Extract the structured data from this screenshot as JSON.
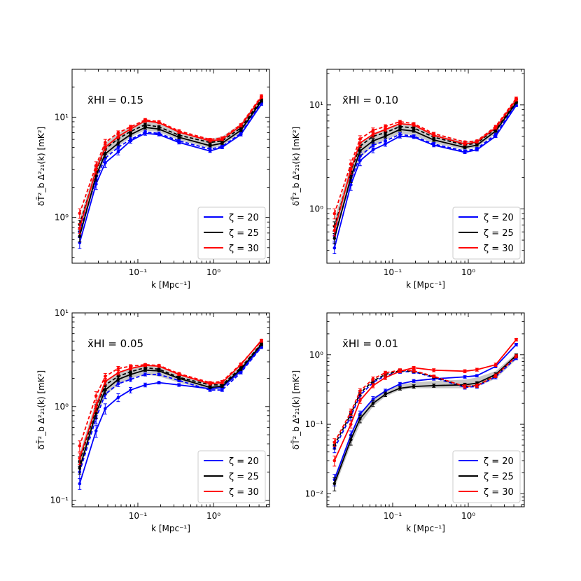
{
  "figure": {
    "x_axis_label": "k [Mpc⁻¹]",
    "y_axis_label": "δT̄²_b Δ²₂₁(k) [mK²]",
    "legend_entries": [
      {
        "label": "ζ = 20",
        "color": "#0000ff"
      },
      {
        "label": "ζ = 25",
        "color": "#000000"
      },
      {
        "label": "ζ = 30",
        "color": "#ff0000"
      }
    ],
    "styles": {
      "solid_series_style": "solid line with dot markers and error bars",
      "dashed_series_style": "dashed line with dot markers and error bars",
      "band_color": "#999999"
    }
  },
  "chart_data": [
    {
      "type": "line",
      "panel": "top-left",
      "annotation": "x̄HI = 0.15",
      "xlabel": "k [Mpc⁻¹]",
      "ylabel": "δT̄²_b Δ²₂₁(k) [mK²]",
      "xscale": "log",
      "yscale": "log",
      "xlim": [
        0.0135,
        5.5
      ],
      "ylim": [
        0.35,
        30
      ],
      "x_tick_labels": [
        "10⁻¹",
        "10⁰"
      ],
      "y_tick_labels": [
        "10⁰",
        "10¹"
      ],
      "legend_position": "lower-right",
      "x": [
        0.017,
        0.028,
        0.037,
        0.055,
        0.08,
        0.125,
        0.19,
        0.35,
        0.9,
        1.3,
        2.3,
        4.3
      ],
      "band": {
        "lower": [
          0.62,
          2.3,
          4.0,
          5.1,
          6.3,
          7.4,
          7.1,
          5.9,
          4.9,
          5.2,
          7.0,
          13.0
        ],
        "upper": [
          0.95,
          3.3,
          5.5,
          6.9,
          8.0,
          9.2,
          8.7,
          7.0,
          6.1,
          6.4,
          8.6,
          16.2
        ]
      },
      "series": [
        {
          "name": "ζ = 20",
          "values": [
            0.56,
            2.15,
            3.5,
            4.5,
            5.8,
            6.9,
            6.7,
            5.6,
            4.6,
            5.0,
            6.7,
            13.5
          ],
          "err": [
            0.07,
            0.25,
            0.35,
            0.3,
            0.3,
            0.3,
            0.2,
            0.2,
            0.15,
            0.15,
            0.2,
            0.4
          ],
          "style": "solid"
        },
        {
          "name": "ζ = 20",
          "values": [
            0.72,
            2.4,
            3.9,
            5.0,
            6.0,
            7.1,
            6.9,
            5.8,
            4.8,
            5.1,
            6.9,
            14.0
          ],
          "err": [
            0.08,
            0.25,
            0.35,
            0.3,
            0.3,
            0.3,
            0.2,
            0.2,
            0.15,
            0.15,
            0.2,
            0.4
          ],
          "style": "dashed"
        },
        {
          "name": "ζ = 25",
          "values": [
            0.65,
            2.6,
            4.3,
            5.5,
            6.7,
            7.9,
            7.6,
            6.3,
            5.2,
            5.5,
            7.4,
            14.5
          ],
          "err": [
            0.08,
            0.3,
            0.35,
            0.3,
            0.3,
            0.3,
            0.2,
            0.2,
            0.15,
            0.15,
            0.2,
            0.4
          ],
          "style": "solid"
        },
        {
          "name": "ζ = 25",
          "values": [
            0.85,
            2.9,
            4.8,
            6.1,
            7.2,
            8.4,
            8.0,
            6.6,
            5.6,
            5.8,
            7.8,
            15.0
          ],
          "err": [
            0.09,
            0.3,
            0.35,
            0.3,
            0.3,
            0.3,
            0.2,
            0.2,
            0.15,
            0.15,
            0.2,
            0.4
          ],
          "style": "dashed"
        },
        {
          "name": "ζ = 30",
          "values": [
            0.78,
            3.0,
            5.0,
            6.4,
            7.6,
            9.2,
            8.8,
            7.1,
            5.8,
            6.0,
            8.2,
            15.8
          ],
          "err": [
            0.09,
            0.3,
            0.35,
            0.3,
            0.3,
            0.3,
            0.2,
            0.2,
            0.15,
            0.15,
            0.2,
            0.4
          ],
          "style": "solid"
        },
        {
          "name": "ζ = 30",
          "values": [
            1.1,
            3.3,
            5.6,
            7.0,
            8.0,
            9.4,
            9.0,
            7.3,
            6.0,
            6.2,
            8.4,
            16.3
          ],
          "err": [
            0.12,
            0.3,
            0.4,
            0.3,
            0.3,
            0.3,
            0.2,
            0.2,
            0.15,
            0.15,
            0.2,
            0.4
          ],
          "style": "dashed"
        }
      ]
    },
    {
      "type": "line",
      "panel": "top-right",
      "annotation": "x̄HI = 0.10",
      "xlabel": "k [Mpc⁻¹]",
      "ylabel": "δT̄²_b Δ²₂₁(k) [mK²]",
      "xscale": "log",
      "yscale": "log",
      "xlim": [
        0.0135,
        5.5
      ],
      "ylim": [
        0.3,
        22
      ],
      "x_tick_labels": [
        "10⁻¹",
        "10⁰"
      ],
      "y_tick_labels": [
        "10⁰",
        "10¹"
      ],
      "legend_position": "lower-right",
      "x": [
        0.017,
        0.028,
        0.037,
        0.055,
        0.08,
        0.125,
        0.19,
        0.35,
        0.9,
        1.3,
        2.3,
        4.3
      ],
      "band": {
        "lower": [
          0.5,
          1.8,
          3.1,
          4.0,
          4.6,
          5.3,
          5.1,
          4.3,
          3.7,
          3.9,
          5.3,
          10.0
        ],
        "upper": [
          0.8,
          2.6,
          4.2,
          5.3,
          5.9,
          6.7,
          6.4,
          5.2,
          4.4,
          4.6,
          6.2,
          11.8
        ]
      },
      "series": [
        {
          "name": "ζ = 20",
          "values": [
            0.42,
            1.7,
            2.9,
            3.7,
            4.2,
            5.0,
            4.9,
            4.1,
            3.5,
            3.7,
            5.0,
            9.9
          ],
          "err": [
            0.05,
            0.2,
            0.3,
            0.25,
            0.2,
            0.2,
            0.15,
            0.15,
            0.1,
            0.1,
            0.15,
            0.3
          ],
          "style": "solid"
        },
        {
          "name": "ζ = 20",
          "values": [
            0.55,
            1.9,
            3.2,
            4.1,
            4.5,
            5.2,
            5.0,
            4.2,
            3.6,
            3.8,
            5.2,
            10.2
          ],
          "err": [
            0.06,
            0.2,
            0.3,
            0.25,
            0.2,
            0.2,
            0.15,
            0.15,
            0.1,
            0.1,
            0.15,
            0.3
          ],
          "style": "dashed"
        },
        {
          "name": "ζ = 25",
          "values": [
            0.52,
            2.0,
            3.6,
            4.5,
            5.0,
            5.8,
            5.6,
            4.6,
            3.9,
            4.1,
            5.6,
            10.5
          ],
          "err": [
            0.06,
            0.2,
            0.3,
            0.25,
            0.2,
            0.2,
            0.15,
            0.15,
            0.1,
            0.1,
            0.15,
            0.3
          ],
          "style": "solid"
        },
        {
          "name": "ζ = 25",
          "values": [
            0.68,
            2.3,
            4.0,
            5.0,
            5.4,
            6.2,
            6.0,
            4.9,
            4.1,
            4.3,
            5.9,
            10.9
          ],
          "err": [
            0.07,
            0.2,
            0.3,
            0.25,
            0.2,
            0.2,
            0.15,
            0.15,
            0.1,
            0.1,
            0.15,
            0.3
          ],
          "style": "dashed"
        },
        {
          "name": "ζ = 30",
          "values": [
            0.62,
            2.4,
            4.3,
            5.2,
            5.8,
            6.6,
            6.4,
            5.1,
            4.2,
            4.4,
            6.0,
            11.2
          ],
          "err": [
            0.07,
            0.25,
            0.35,
            0.3,
            0.25,
            0.2,
            0.15,
            0.15,
            0.1,
            0.1,
            0.15,
            0.3
          ],
          "style": "solid"
        },
        {
          "name": "ζ = 30",
          "values": [
            0.9,
            2.7,
            4.7,
            5.7,
            6.2,
            6.9,
            6.6,
            5.3,
            4.4,
            4.5,
            6.2,
            11.6
          ],
          "err": [
            0.1,
            0.25,
            0.35,
            0.3,
            0.25,
            0.2,
            0.15,
            0.15,
            0.1,
            0.1,
            0.15,
            0.3
          ],
          "style": "dashed"
        }
      ]
    },
    {
      "type": "line",
      "panel": "bottom-left",
      "annotation": "x̄HI = 0.05",
      "xlabel": "k [Mpc⁻¹]",
      "ylabel": "δT̄²_b Δ²₂₁(k) [mK²]",
      "xscale": "log",
      "yscale": "log",
      "xlim": [
        0.0135,
        5.5
      ],
      "ylim": [
        0.085,
        10
      ],
      "x_tick_labels": [
        "10⁻¹",
        "10⁰"
      ],
      "y_tick_labels": [
        "10⁻¹",
        "10⁰",
        "10¹"
      ],
      "legend_position": "lower-right",
      "x": [
        0.017,
        0.028,
        0.037,
        0.055,
        0.08,
        0.125,
        0.19,
        0.35,
        0.9,
        1.3,
        2.3,
        4.3
      ],
      "band": {
        "lower": [
          0.2,
          0.75,
          1.3,
          1.7,
          2.0,
          2.2,
          2.1,
          1.8,
          1.5,
          1.55,
          2.3,
          4.2
        ],
        "upper": [
          0.32,
          1.15,
          1.9,
          2.3,
          2.6,
          2.8,
          2.7,
          2.2,
          1.8,
          1.8,
          2.7,
          4.9
        ]
      },
      "series": [
        {
          "name": "ζ = 20",
          "values": [
            0.15,
            0.55,
            0.95,
            1.25,
            1.5,
            1.7,
            1.8,
            1.7,
            1.55,
            1.6,
            2.4,
            4.4
          ],
          "err": [
            0.02,
            0.08,
            0.12,
            0.12,
            0.1,
            0.08,
            0.06,
            0.06,
            0.05,
            0.05,
            0.07,
            0.15
          ],
          "style": "solid"
        },
        {
          "name": "ζ = 20",
          "values": [
            0.2,
            0.75,
            1.35,
            1.75,
            1.95,
            2.2,
            2.2,
            1.9,
            1.5,
            1.5,
            2.3,
            4.3
          ],
          "err": [
            0.03,
            0.1,
            0.14,
            0.12,
            0.1,
            0.08,
            0.06,
            0.06,
            0.05,
            0.05,
            0.07,
            0.15
          ],
          "style": "dashed"
        },
        {
          "name": "ζ = 25",
          "values": [
            0.22,
            0.85,
            1.5,
            1.95,
            2.2,
            2.45,
            2.4,
            2.0,
            1.6,
            1.65,
            2.5,
            4.6
          ],
          "err": [
            0.03,
            0.1,
            0.14,
            0.12,
            0.1,
            0.08,
            0.06,
            0.06,
            0.05,
            0.05,
            0.07,
            0.15
          ],
          "style": "solid"
        },
        {
          "name": "ζ = 25",
          "values": [
            0.26,
            0.95,
            1.7,
            2.1,
            2.35,
            2.6,
            2.5,
            2.05,
            1.7,
            1.7,
            2.6,
            4.7
          ],
          "err": [
            0.03,
            0.1,
            0.14,
            0.12,
            0.1,
            0.08,
            0.06,
            0.06,
            0.05,
            0.05,
            0.07,
            0.15
          ],
          "style": "dashed"
        },
        {
          "name": "ζ = 30",
          "values": [
            0.28,
            1.0,
            1.85,
            2.3,
            2.55,
            2.75,
            2.7,
            2.2,
            1.75,
            1.8,
            2.8,
            5.1
          ],
          "err": [
            0.04,
            0.12,
            0.15,
            0.13,
            0.1,
            0.08,
            0.06,
            0.06,
            0.05,
            0.05,
            0.07,
            0.15
          ],
          "style": "solid"
        },
        {
          "name": "ζ = 30",
          "values": [
            0.38,
            1.3,
            2.1,
            2.55,
            2.7,
            2.8,
            2.75,
            2.25,
            1.8,
            1.85,
            2.85,
            5.0
          ],
          "err": [
            0.05,
            0.14,
            0.16,
            0.13,
            0.1,
            0.08,
            0.06,
            0.06,
            0.05,
            0.05,
            0.07,
            0.15
          ],
          "style": "dashed"
        }
      ]
    },
    {
      "type": "line",
      "panel": "bottom-right",
      "annotation": "x̄HI = 0.01",
      "xlabel": "k [Mpc⁻¹]",
      "ylabel": "δT̄²_b Δ²₂₁(k) [mK²]",
      "xscale": "log",
      "yscale": "log",
      "xlim": [
        0.0135,
        5.5
      ],
      "ylim": [
        0.0065,
        4
      ],
      "x_tick_labels": [
        "10⁻¹",
        "10⁰"
      ],
      "y_tick_labels": [
        "10⁻²",
        "10⁻¹",
        "10⁰"
      ],
      "legend_position": "lower-right",
      "x": [
        0.017,
        0.028,
        0.037,
        0.055,
        0.08,
        0.125,
        0.19,
        0.35,
        0.9,
        1.3,
        2.3,
        4.3
      ],
      "band": {
        "lower": [
          0.012,
          0.05,
          0.1,
          0.18,
          0.25,
          0.31,
          0.33,
          0.33,
          0.33,
          0.35,
          0.45,
          0.85
        ],
        "upper": [
          0.018,
          0.07,
          0.14,
          0.24,
          0.31,
          0.37,
          0.4,
          0.42,
          0.44,
          0.47,
          0.58,
          1.05
        ]
      },
      "series": [
        {
          "name": "ζ = 20",
          "values": [
            0.016,
            0.07,
            0.14,
            0.23,
            0.3,
            0.38,
            0.42,
            0.45,
            0.48,
            0.5,
            0.68,
            1.4
          ],
          "err": [
            0.003,
            0.01,
            0.015,
            0.02,
            0.02,
            0.02,
            0.02,
            0.02,
            0.02,
            0.02,
            0.03,
            0.06
          ],
          "style": "solid"
        },
        {
          "name": "ζ = 20",
          "values": [
            0.045,
            0.13,
            0.26,
            0.4,
            0.5,
            0.57,
            0.57,
            0.47,
            0.34,
            0.35,
            0.48,
            0.9
          ],
          "err": [
            0.006,
            0.015,
            0.025,
            0.03,
            0.03,
            0.03,
            0.03,
            0.02,
            0.02,
            0.02,
            0.03,
            0.05
          ],
          "style": "dashed"
        },
        {
          "name": "ζ = 25",
          "values": [
            0.014,
            0.06,
            0.12,
            0.2,
            0.27,
            0.33,
            0.35,
            0.36,
            0.37,
            0.39,
            0.52,
            0.98
          ],
          "err": [
            0.003,
            0.01,
            0.015,
            0.02,
            0.02,
            0.02,
            0.02,
            0.02,
            0.02,
            0.02,
            0.03,
            0.05
          ],
          "style": "solid"
        },
        {
          "name": "ζ = 25",
          "values": [
            0.05,
            0.14,
            0.28,
            0.42,
            0.52,
            0.59,
            0.58,
            0.48,
            0.35,
            0.36,
            0.5,
            0.95
          ],
          "err": [
            0.006,
            0.015,
            0.025,
            0.03,
            0.03,
            0.03,
            0.03,
            0.02,
            0.02,
            0.02,
            0.03,
            0.05
          ],
          "style": "dashed"
        },
        {
          "name": "ζ = 30",
          "values": [
            0.03,
            0.1,
            0.22,
            0.36,
            0.47,
            0.58,
            0.65,
            0.6,
            0.58,
            0.61,
            0.72,
            1.65
          ],
          "err": [
            0.005,
            0.012,
            0.02,
            0.025,
            0.03,
            0.03,
            0.03,
            0.03,
            0.03,
            0.03,
            0.04,
            0.07
          ],
          "style": "solid"
        },
        {
          "name": "ζ = 30",
          "values": [
            0.055,
            0.15,
            0.3,
            0.45,
            0.55,
            0.6,
            0.59,
            0.49,
            0.35,
            0.36,
            0.5,
            0.95
          ],
          "err": [
            0.007,
            0.016,
            0.026,
            0.03,
            0.03,
            0.03,
            0.03,
            0.02,
            0.02,
            0.02,
            0.03,
            0.05
          ],
          "style": "dashed"
        }
      ]
    }
  ]
}
